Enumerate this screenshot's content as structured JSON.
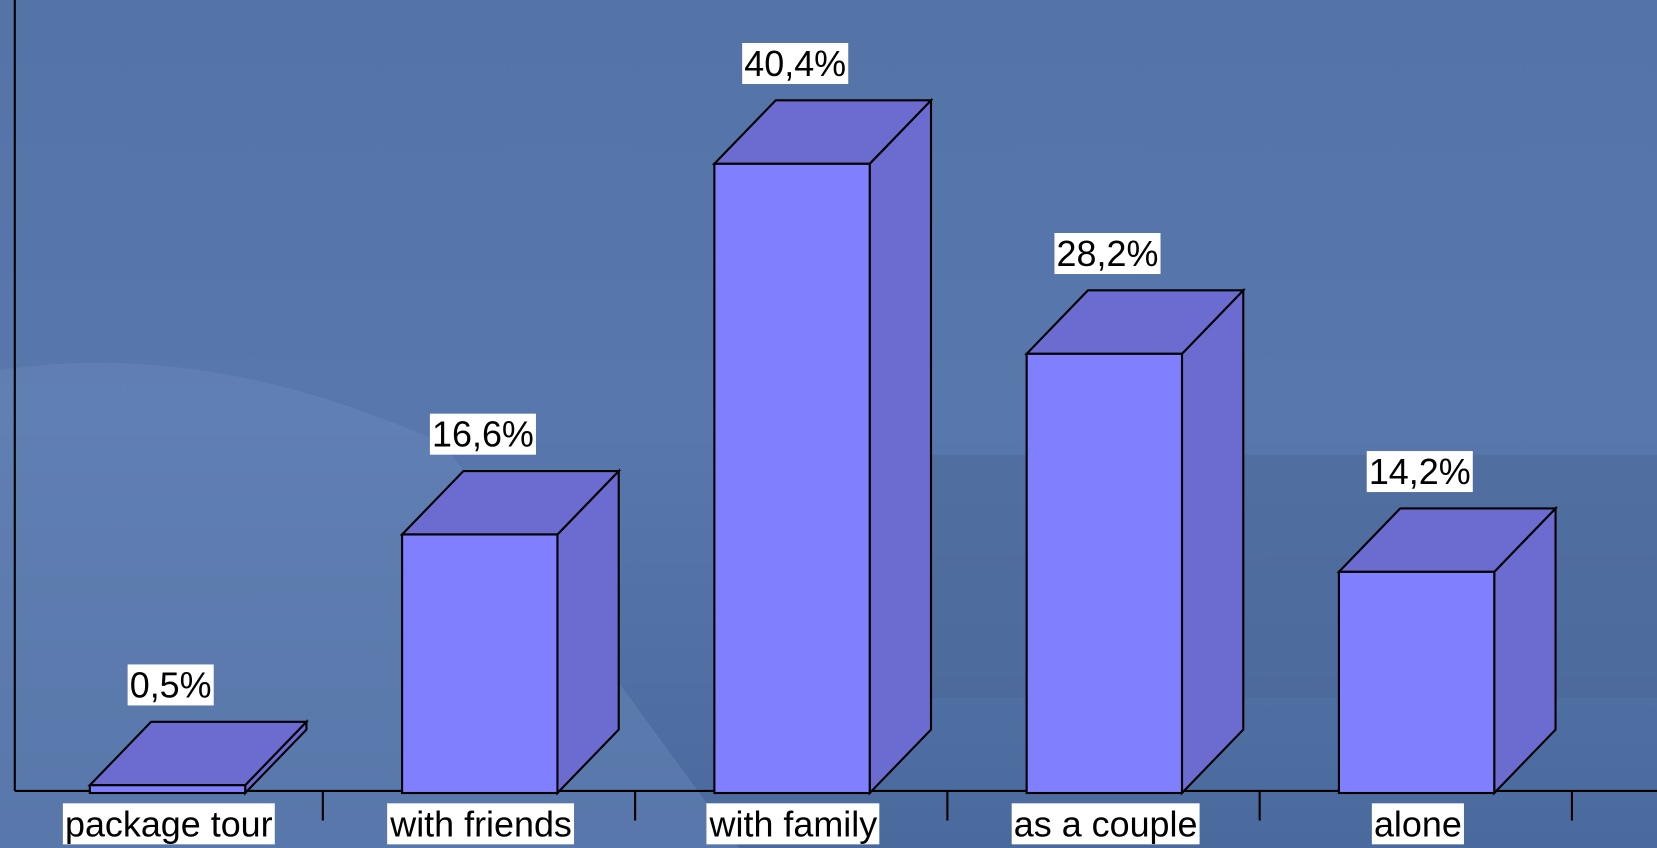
{
  "chart_data": {
    "type": "bar3d",
    "categories": [
      "package tour",
      "with friends",
      "with family",
      "as a couple",
      "alone"
    ],
    "values": [
      0.5,
      16.6,
      40.4,
      28.2,
      14.2
    ],
    "value_labels": [
      "0,5%",
      "16,6%",
      "40,4%",
      "28,2%",
      "14,2%"
    ],
    "color": "#8080ff",
    "side_color": "#6b6bd0"
  }
}
